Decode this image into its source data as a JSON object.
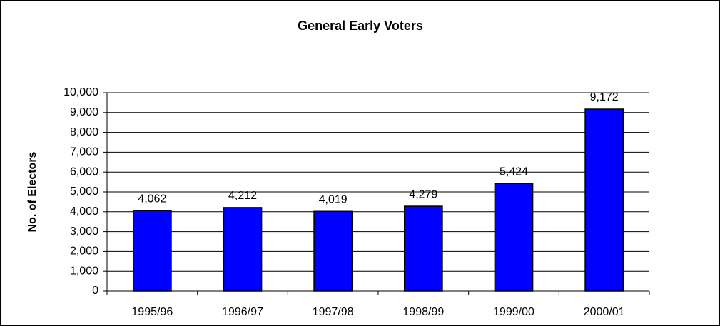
{
  "chart_data": {
    "type": "bar",
    "title": "General Early Voters",
    "y_label": "No. of Electors",
    "categories": [
      "1995/96",
      "1996/97",
      "1997/98",
      "1998/99",
      "1999/00",
      "2000/01"
    ],
    "values": [
      4062,
      4212,
      4019,
      4279,
      5424,
      9172
    ],
    "value_labels": [
      "4,062",
      "4,212",
      "4,019",
      "4,279",
      "5,424",
      "9,172"
    ],
    "color": "#0000ff",
    "ylim": [
      0,
      10000
    ],
    "yticks": [
      0,
      {
        "value": 1000,
        "label": "1,000"
      },
      {
        "value": 2000,
        "label": "2,000"
      },
      {
        "value": 3000,
        "label": "3,000"
      },
      {
        "value": 4000,
        "label": "4,000"
      },
      {
        "value": 5000,
        "label": "5,000"
      },
      {
        "value": 6000,
        "label": "6,000"
      },
      {
        "value": 7000,
        "label": "7,000"
      },
      {
        "value": 8000,
        "label": "8,000"
      },
      {
        "value": 9000,
        "label": "9,000"
      },
      {
        "value": 10000,
        "label": "10,000"
      }
    ],
    "grid": true
  }
}
